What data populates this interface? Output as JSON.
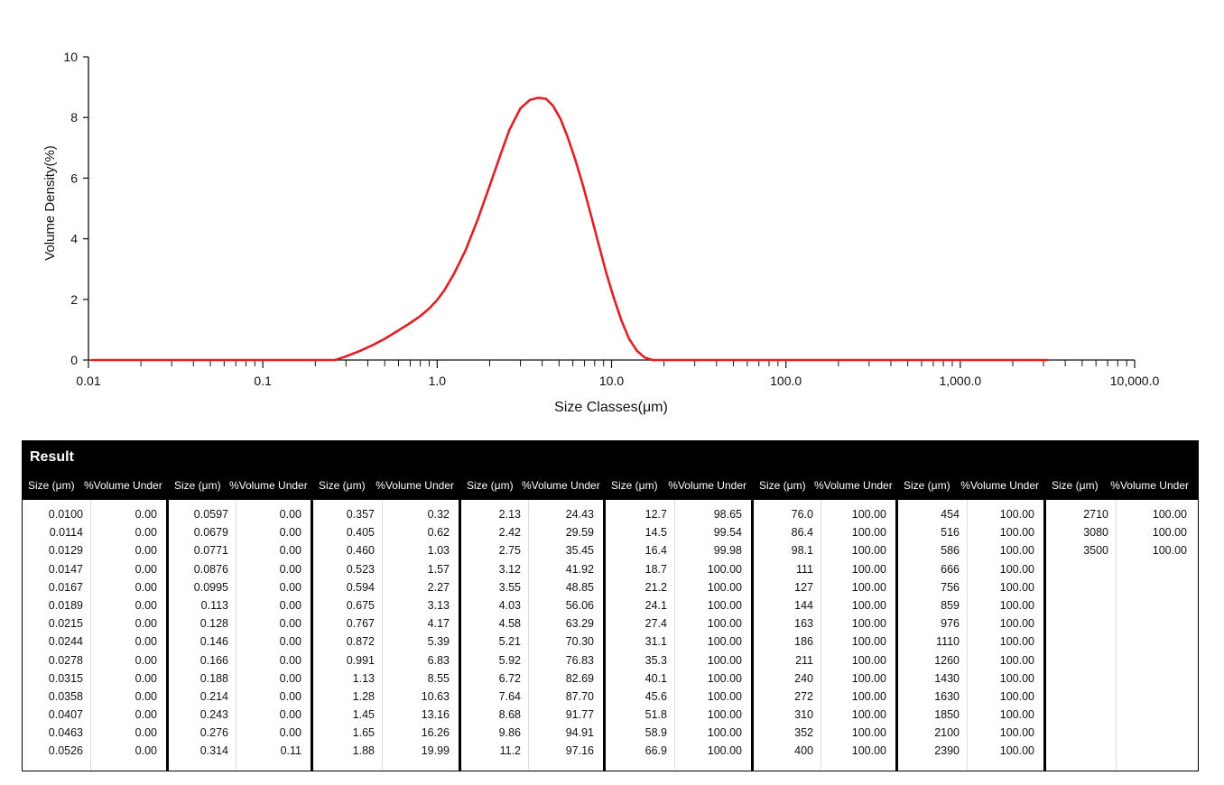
{
  "chart_data": {
    "type": "line",
    "xlabel": "Size Classes(μm)",
    "ylabel": "Volume Density(%)",
    "x_scale": "log",
    "xlim": [
      0.01,
      10000
    ],
    "ylim": [
      0,
      10
    ],
    "x_tick_labels": [
      "0.01",
      "0.1",
      "1.0",
      "10.0",
      "100.0",
      "1,000.0",
      "10,000.0"
    ],
    "y_tick_labels": [
      "0",
      "2",
      "4",
      "6",
      "8",
      "10"
    ],
    "grid": false,
    "line_color": "#e02025",
    "series": [
      {
        "x": [
          0.0105,
          0.26,
          0.3,
          0.36,
          0.43,
          0.5,
          0.6,
          0.7,
          0.8,
          0.9,
          1.0,
          1.1,
          1.25,
          1.45,
          1.7,
          2.0,
          2.3,
          2.6,
          3.0,
          3.4,
          3.8,
          4.2,
          4.6,
          5.1,
          5.6,
          6.2,
          6.9,
          7.6,
          8.4,
          9.3,
          10.3,
          11.4,
          12.6,
          14.0,
          15.5,
          17.2,
          19.0,
          3150
        ],
        "y": [
          0.0,
          0.0,
          0.12,
          0.3,
          0.5,
          0.7,
          0.98,
          1.22,
          1.45,
          1.7,
          1.98,
          2.3,
          2.85,
          3.6,
          4.6,
          5.75,
          6.75,
          7.6,
          8.3,
          8.58,
          8.65,
          8.62,
          8.4,
          7.95,
          7.35,
          6.6,
          5.7,
          4.8,
          3.85,
          2.9,
          2.05,
          1.3,
          0.7,
          0.3,
          0.08,
          0.0,
          0.0,
          0.0
        ]
      }
    ]
  },
  "result": {
    "title": "Result",
    "size_header": "Size (μm)",
    "vol_header": "%Volume Under",
    "groups": [
      [
        [
          "0.0100",
          "0.00"
        ],
        [
          "0.0114",
          "0.00"
        ],
        [
          "0.0129",
          "0.00"
        ],
        [
          "0.0147",
          "0.00"
        ],
        [
          "0.0167",
          "0.00"
        ],
        [
          "0.0189",
          "0.00"
        ],
        [
          "0.0215",
          "0.00"
        ],
        [
          "0.0244",
          "0.00"
        ],
        [
          "0.0278",
          "0.00"
        ],
        [
          "0.0315",
          "0.00"
        ],
        [
          "0.0358",
          "0.00"
        ],
        [
          "0.0407",
          "0.00"
        ],
        [
          "0.0463",
          "0.00"
        ],
        [
          "0.0526",
          "0.00"
        ]
      ],
      [
        [
          "0.0597",
          "0.00"
        ],
        [
          "0.0679",
          "0.00"
        ],
        [
          "0.0771",
          "0.00"
        ],
        [
          "0.0876",
          "0.00"
        ],
        [
          "0.0995",
          "0.00"
        ],
        [
          "0.113",
          "0.00"
        ],
        [
          "0.128",
          "0.00"
        ],
        [
          "0.146",
          "0.00"
        ],
        [
          "0.166",
          "0.00"
        ],
        [
          "0.188",
          "0.00"
        ],
        [
          "0.214",
          "0.00"
        ],
        [
          "0.243",
          "0.00"
        ],
        [
          "0.276",
          "0.00"
        ],
        [
          "0.314",
          "0.11"
        ]
      ],
      [
        [
          "0.357",
          "0.32"
        ],
        [
          "0.405",
          "0.62"
        ],
        [
          "0.460",
          "1.03"
        ],
        [
          "0.523",
          "1.57"
        ],
        [
          "0.594",
          "2.27"
        ],
        [
          "0.675",
          "3.13"
        ],
        [
          "0.767",
          "4.17"
        ],
        [
          "0.872",
          "5.39"
        ],
        [
          "0.991",
          "6.83"
        ],
        [
          "1.13",
          "8.55"
        ],
        [
          "1.28",
          "10.63"
        ],
        [
          "1.45",
          "13.16"
        ],
        [
          "1.65",
          "16.26"
        ],
        [
          "1.88",
          "19.99"
        ]
      ],
      [
        [
          "2.13",
          "24.43"
        ],
        [
          "2.42",
          "29.59"
        ],
        [
          "2.75",
          "35.45"
        ],
        [
          "3.12",
          "41.92"
        ],
        [
          "3.55",
          "48.85"
        ],
        [
          "4.03",
          "56.06"
        ],
        [
          "4.58",
          "63.29"
        ],
        [
          "5.21",
          "70.30"
        ],
        [
          "5.92",
          "76.83"
        ],
        [
          "6.72",
          "82.69"
        ],
        [
          "7.64",
          "87.70"
        ],
        [
          "8.68",
          "91.77"
        ],
        [
          "9.86",
          "94.91"
        ],
        [
          "11.2",
          "97.16"
        ]
      ],
      [
        [
          "12.7",
          "98.65"
        ],
        [
          "14.5",
          "99.54"
        ],
        [
          "16.4",
          "99.98"
        ],
        [
          "18.7",
          "100.00"
        ],
        [
          "21.2",
          "100.00"
        ],
        [
          "24.1",
          "100.00"
        ],
        [
          "27.4",
          "100.00"
        ],
        [
          "31.1",
          "100.00"
        ],
        [
          "35.3",
          "100.00"
        ],
        [
          "40.1",
          "100.00"
        ],
        [
          "45.6",
          "100.00"
        ],
        [
          "51.8",
          "100.00"
        ],
        [
          "58.9",
          "100.00"
        ],
        [
          "66.9",
          "100.00"
        ]
      ],
      [
        [
          "76.0",
          "100.00"
        ],
        [
          "86.4",
          "100.00"
        ],
        [
          "98.1",
          "100.00"
        ],
        [
          "111",
          "100.00"
        ],
        [
          "127",
          "100.00"
        ],
        [
          "144",
          "100.00"
        ],
        [
          "163",
          "100.00"
        ],
        [
          "186",
          "100.00"
        ],
        [
          "211",
          "100.00"
        ],
        [
          "240",
          "100.00"
        ],
        [
          "272",
          "100.00"
        ],
        [
          "310",
          "100.00"
        ],
        [
          "352",
          "100.00"
        ],
        [
          "400",
          "100.00"
        ]
      ],
      [
        [
          "454",
          "100.00"
        ],
        [
          "516",
          "100.00"
        ],
        [
          "586",
          "100.00"
        ],
        [
          "666",
          "100.00"
        ],
        [
          "756",
          "100.00"
        ],
        [
          "859",
          "100.00"
        ],
        [
          "976",
          "100.00"
        ],
        [
          "1110",
          "100.00"
        ],
        [
          "1260",
          "100.00"
        ],
        [
          "1430",
          "100.00"
        ],
        [
          "1630",
          "100.00"
        ],
        [
          "1850",
          "100.00"
        ],
        [
          "2100",
          "100.00"
        ],
        [
          "2390",
          "100.00"
        ]
      ],
      [
        [
          "2710",
          "100.00"
        ],
        [
          "3080",
          "100.00"
        ],
        [
          "3500",
          "100.00"
        ]
      ]
    ]
  }
}
